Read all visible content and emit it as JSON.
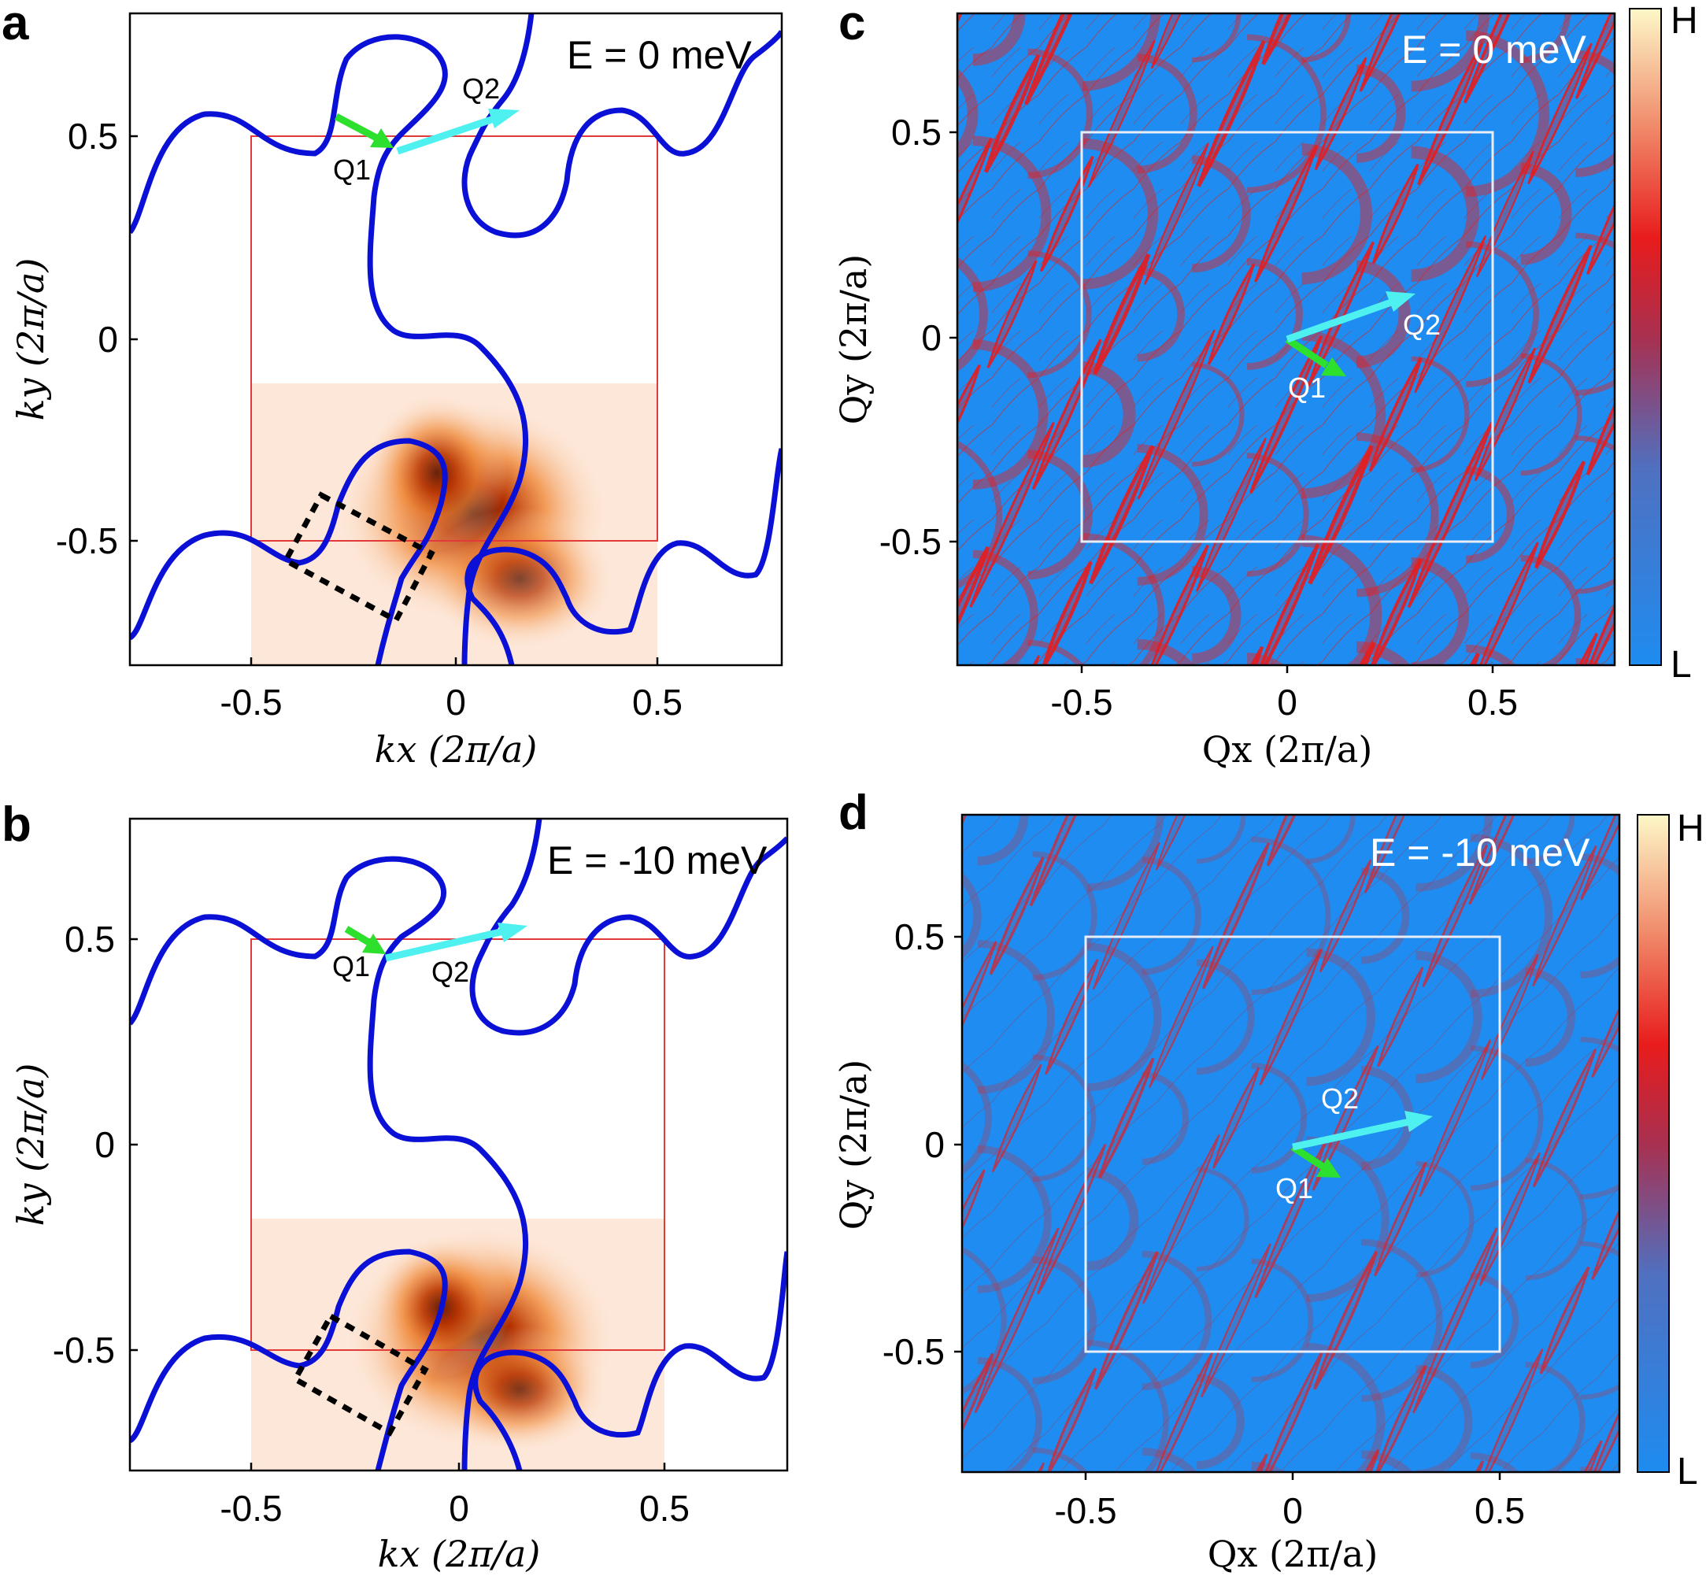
{
  "figure": {
    "panels": {
      "a": {
        "label": "a",
        "energy": "E = 0 meV",
        "q1": "Q1",
        "q2": "Q2"
      },
      "b": {
        "label": "b",
        "energy": "E = -10 meV",
        "q1": "Q1",
        "q2": "Q2"
      },
      "c": {
        "label": "c",
        "energy": "E = 0 meV",
        "q1": "Q1",
        "q2": "Q2"
      },
      "d": {
        "label": "d",
        "energy": "E = -10 meV",
        "q1": "Q1",
        "q2": "Q2"
      }
    },
    "axes": {
      "kx_label": "kx (2π/a)",
      "ky_label": "ky (2π/a)",
      "qx_label": "Qx  (2π/a)",
      "qy_label": "Qy  (2π/a)"
    },
    "ticks": [
      "-0.5",
      "0",
      "0.5"
    ],
    "colorbar": {
      "high": "H",
      "low": "L"
    },
    "colors": {
      "fermi_surface": "#0a10d6",
      "bz_boundary": "#e23a3a",
      "q1_arrow": "#2ee02e",
      "q2_arrow": "#4ff0f0",
      "qpi_background": "#1e8cf0",
      "qpi_feature": "#e81c1c"
    }
  },
  "chart_data": [
    {
      "type": "line",
      "panel": "a",
      "title": "E = 0 meV",
      "xlabel": "kx (2π/a)",
      "ylabel": "ky (2π/a)",
      "xlim": [
        -0.8,
        0.8
      ],
      "ylim": [
        -0.8,
        0.8
      ],
      "xticks": [
        -0.5,
        0,
        0.5
      ],
      "yticks": [
        -0.5,
        0,
        0.5
      ],
      "brillouin_zone": {
        "x": [
          -0.5,
          0.5
        ],
        "y": [
          -0.5,
          0.5
        ]
      },
      "arpes_intensity_window": {
        "x": [
          -0.5,
          0.5
        ],
        "y": [
          -0.8,
          -0.11
        ]
      },
      "vectors": [
        {
          "name": "Q1",
          "from": [
            -0.3,
            0.55
          ],
          "to": [
            -0.15,
            0.47
          ]
        },
        {
          "name": "Q2",
          "from": [
            -0.15,
            0.46
          ],
          "to": [
            0.15,
            0.56
          ]
        }
      ]
    },
    {
      "type": "line",
      "panel": "b",
      "title": "E = -10 meV",
      "xlabel": "kx (2π/a)",
      "ylabel": "ky (2π/a)",
      "xlim": [
        -0.8,
        0.8
      ],
      "ylim": [
        -0.8,
        0.8
      ],
      "xticks": [
        -0.5,
        0,
        0.5
      ],
      "yticks": [
        -0.5,
        0,
        0.5
      ],
      "brillouin_zone": {
        "x": [
          -0.5,
          0.5
        ],
        "y": [
          -0.5,
          0.5
        ]
      },
      "arpes_intensity_window": {
        "x": [
          -0.5,
          0.5
        ],
        "y": [
          -0.8,
          -0.18
        ]
      },
      "vectors": [
        {
          "name": "Q1",
          "from": [
            -0.27,
            0.53
          ],
          "to": [
            -0.18,
            0.46
          ]
        },
        {
          "name": "Q2",
          "from": [
            -0.18,
            0.46
          ],
          "to": [
            0.14,
            0.53
          ]
        }
      ]
    },
    {
      "type": "heatmap",
      "panel": "c",
      "title": "E = 0 meV",
      "xlabel": "Qx  (2π/a)",
      "ylabel": "Qy  (2π/a)",
      "xlim": [
        -0.8,
        0.8
      ],
      "ylim": [
        -0.8,
        0.8
      ],
      "xticks": [
        -0.5,
        0,
        0.5
      ],
      "yticks": [
        -0.5,
        0,
        0.5
      ],
      "brillouin_zone": {
        "x": [
          -0.5,
          0.5
        ],
        "y": [
          -0.5,
          0.5
        ]
      },
      "colorbar": [
        "L",
        "H"
      ],
      "vectors": [
        {
          "name": "Q1",
          "from": [
            0,
            0
          ],
          "to": [
            0.14,
            -0.09
          ]
        },
        {
          "name": "Q2",
          "from": [
            0,
            0
          ],
          "to": [
            0.3,
            0.11
          ]
        }
      ]
    },
    {
      "type": "heatmap",
      "panel": "d",
      "title": "E = -10 meV",
      "xlabel": "Qx  (2π/a)",
      "ylabel": "Qy  (2π/a)",
      "xlim": [
        -0.8,
        0.8
      ],
      "ylim": [
        -0.8,
        0.8
      ],
      "xticks": [
        -0.5,
        0,
        0.5
      ],
      "yticks": [
        -0.5,
        0,
        0.5
      ],
      "brillouin_zone": {
        "x": [
          -0.5,
          0.5
        ],
        "y": [
          -0.5,
          0.5
        ]
      },
      "colorbar": [
        "L",
        "H"
      ],
      "vectors": [
        {
          "name": "Q1",
          "from": [
            0,
            0
          ],
          "to": [
            0.11,
            -0.07
          ]
        },
        {
          "name": "Q2",
          "from": [
            0,
            0
          ],
          "to": [
            0.33,
            0.1
          ]
        }
      ]
    }
  ]
}
